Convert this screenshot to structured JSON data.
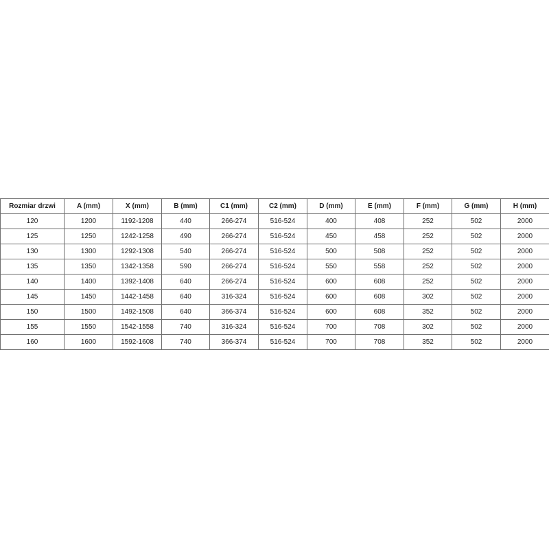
{
  "table": {
    "headers": [
      "Rozmiar drzwi",
      "A (mm)",
      "X (mm)",
      "B (mm)",
      "C1 (mm)",
      "C2 (mm)",
      "D (mm)",
      "E (mm)",
      "F (mm)",
      "G (mm)",
      "H (mm)"
    ],
    "rows": [
      [
        "120",
        "1200",
        "1192-1208",
        "440",
        "266-274",
        "516-524",
        "400",
        "408",
        "252",
        "502",
        "2000"
      ],
      [
        "125",
        "1250",
        "1242-1258",
        "490",
        "266-274",
        "516-524",
        "450",
        "458",
        "252",
        "502",
        "2000"
      ],
      [
        "130",
        "1300",
        "1292-1308",
        "540",
        "266-274",
        "516-524",
        "500",
        "508",
        "252",
        "502",
        "2000"
      ],
      [
        "135",
        "1350",
        "1342-1358",
        "590",
        "266-274",
        "516-524",
        "550",
        "558",
        "252",
        "502",
        "2000"
      ],
      [
        "140",
        "1400",
        "1392-1408",
        "640",
        "266-274",
        "516-524",
        "600",
        "608",
        "252",
        "502",
        "2000"
      ],
      [
        "145",
        "1450",
        "1442-1458",
        "640",
        "316-324",
        "516-524",
        "600",
        "608",
        "302",
        "502",
        "2000"
      ],
      [
        "150",
        "1500",
        "1492-1508",
        "640",
        "366-374",
        "516-524",
        "600",
        "608",
        "352",
        "502",
        "2000"
      ],
      [
        "155",
        "1550",
        "1542-1558",
        "740",
        "316-324",
        "516-524",
        "700",
        "708",
        "302",
        "502",
        "2000"
      ],
      [
        "160",
        "1600",
        "1592-1608",
        "740",
        "366-374",
        "516-524",
        "700",
        "708",
        "352",
        "502",
        "2000"
      ]
    ]
  }
}
